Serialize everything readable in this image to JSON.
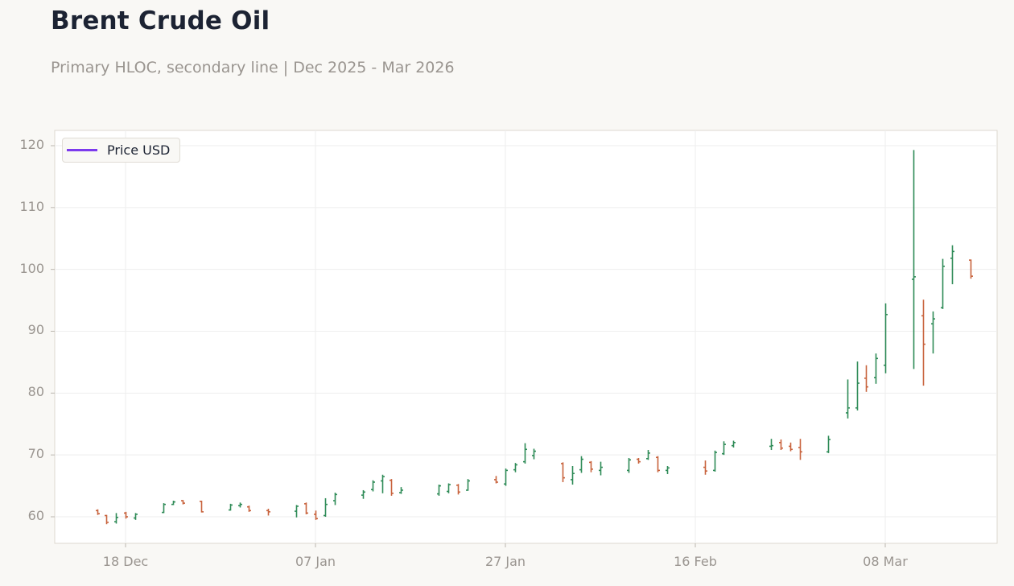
{
  "header": {
    "title": "Brent Crude Oil",
    "subtitle": "Primary HLOC, secondary line | Dec 2025 - Mar 2026"
  },
  "legend": {
    "items": [
      {
        "label": "Price USD",
        "color": "#7c3aed"
      }
    ]
  },
  "colors": {
    "up": "#2e8b57",
    "down": "#c8623c",
    "background": "#f9f8f5",
    "plot_bg": "#ffffff",
    "grid": "#eeeeee",
    "axis_text": "#9a9590"
  },
  "axes": {
    "y_ticks": [
      "60",
      "70",
      "80",
      "90",
      "100",
      "110",
      "120"
    ],
    "x_ticks": [
      "18 Dec",
      "07 Jan",
      "27 Jan",
      "16 Feb",
      "08 Mar"
    ]
  },
  "chart_data": {
    "type": "ohlc",
    "title": "Brent Crude Oil",
    "subtitle": "Primary HLOC, secondary line | Dec 2025 - Mar 2026",
    "xlabel": "",
    "ylabel": "",
    "ylim": [
      55.5,
      122.5
    ],
    "y_ticks": [
      60,
      70,
      80,
      90,
      100,
      110,
      120
    ],
    "x_ticks": [
      "18 Dec",
      "07 Jan",
      "27 Jan",
      "16 Feb",
      "08 Mar"
    ],
    "grid": true,
    "legend": {
      "position": "upper left",
      "entries": [
        "Price USD"
      ]
    },
    "series": [
      {
        "name": "Price USD",
        "x": [
          "2025-12-15",
          "2025-12-16",
          "2025-12-17",
          "2025-12-18",
          "2025-12-19",
          "2025-12-22",
          "2025-12-23",
          "2025-12-24",
          "2025-12-26",
          "2025-12-29",
          "2025-12-30",
          "2025-12-31",
          "2026-01-02",
          "2026-01-05",
          "2026-01-06",
          "2026-01-07",
          "2026-01-08",
          "2026-01-09",
          "2026-01-12",
          "2026-01-13",
          "2026-01-14",
          "2026-01-15",
          "2026-01-16",
          "2026-01-20",
          "2026-01-21",
          "2026-01-22",
          "2026-01-23",
          "2026-01-26",
          "2026-01-27",
          "2026-01-28",
          "2026-01-29",
          "2026-01-30",
          "2026-02-02",
          "2026-02-03",
          "2026-02-04",
          "2026-02-05",
          "2026-02-06",
          "2026-02-09",
          "2026-02-10",
          "2026-02-11",
          "2026-02-12",
          "2026-02-13",
          "2026-02-17",
          "2026-02-18",
          "2026-02-19",
          "2026-02-20",
          "2026-02-24",
          "2026-02-25",
          "2026-02-26",
          "2026-02-27",
          "2026-03-02",
          "2026-03-04",
          "2026-03-05",
          "2026-03-06",
          "2026-03-07",
          "2026-03-08",
          "2026-03-11",
          "2026-03-12",
          "2026-03-13",
          "2026-03-14",
          "2026-03-15",
          "2026-03-17"
        ],
        "open": [
          61.0,
          60.2,
          59.2,
          60.6,
          59.8,
          60.7,
          62.0,
          62.6,
          62.5,
          61.1,
          61.8,
          61.6,
          61.0,
          60.9,
          62.1,
          60.4,
          60.2,
          62.6,
          63.5,
          64.4,
          65.8,
          65.9,
          63.9,
          63.7,
          64.1,
          65.1,
          64.3,
          66.0,
          65.3,
          67.6,
          68.9,
          69.9,
          68.6,
          66.0,
          67.6,
          68.8,
          67.5,
          67.5,
          69.3,
          69.4,
          69.6,
          67.5,
          68.0,
          67.5,
          70.2,
          71.5,
          71.4,
          72.0,
          71.4,
          71.2,
          70.5,
          76.8,
          77.6,
          82.4,
          82.5,
          84.5,
          98.4,
          92.5,
          91.2,
          93.8,
          101.8,
          101.5
        ],
        "high": [
          61.2,
          60.3,
          60.6,
          60.8,
          60.6,
          62.2,
          62.6,
          62.7,
          62.6,
          62.1,
          62.3,
          61.8,
          61.3,
          61.9,
          62.3,
          61.0,
          63.0,
          63.9,
          64.3,
          65.9,
          66.8,
          66.1,
          64.8,
          65.2,
          65.4,
          65.3,
          66.1,
          66.6,
          67.8,
          68.7,
          71.9,
          71.0,
          68.8,
          68.2,
          69.8,
          69.0,
          68.9,
          69.5,
          69.5,
          70.8,
          69.8,
          68.2,
          69.1,
          70.7,
          72.2,
          72.3,
          72.6,
          72.5,
          72.0,
          72.6,
          73.1,
          82.2,
          85.1,
          84.5,
          86.4,
          94.5,
          119.3,
          95.1,
          93.2,
          101.7,
          103.9,
          101.6
        ],
        "low": [
          60.3,
          58.8,
          58.9,
          59.7,
          59.5,
          60.6,
          61.9,
          62.0,
          60.7,
          61.0,
          61.5,
          60.8,
          60.2,
          59.9,
          60.4,
          59.5,
          60.0,
          61.9,
          62.9,
          64.1,
          63.8,
          63.4,
          63.7,
          63.4,
          63.8,
          63.6,
          64.2,
          65.4,
          65.0,
          67.2,
          68.6,
          69.3,
          65.6,
          65.2,
          67.1,
          67.2,
          66.7,
          67.1,
          68.6,
          69.2,
          67.2,
          66.9,
          66.8,
          67.3,
          70.0,
          71.2,
          70.8,
          70.8,
          70.6,
          69.2,
          70.3,
          75.9,
          77.2,
          80.2,
          81.5,
          83.2,
          83.9,
          81.2,
          86.4,
          93.6,
          97.6,
          98.5
        ],
        "close": [
          60.5,
          59.1,
          59.9,
          60.0,
          60.4,
          62.0,
          62.4,
          62.2,
          60.8,
          61.9,
          62.0,
          61.0,
          60.8,
          61.7,
          60.6,
          59.7,
          62.0,
          63.6,
          64.0,
          65.6,
          66.5,
          63.8,
          64.3,
          65.0,
          65.2,
          64.0,
          65.8,
          65.6,
          67.5,
          68.4,
          70.9,
          70.6,
          66.3,
          67.0,
          69.3,
          67.7,
          68.0,
          69.2,
          68.9,
          70.3,
          67.5,
          67.9,
          67.4,
          70.4,
          71.7,
          72.0,
          71.5,
          71.1,
          70.9,
          70.5,
          72.5,
          77.6,
          81.6,
          81.0,
          85.6,
          92.7,
          98.8,
          87.9,
          92.0,
          100.5,
          102.9,
          98.9
        ]
      }
    ]
  }
}
